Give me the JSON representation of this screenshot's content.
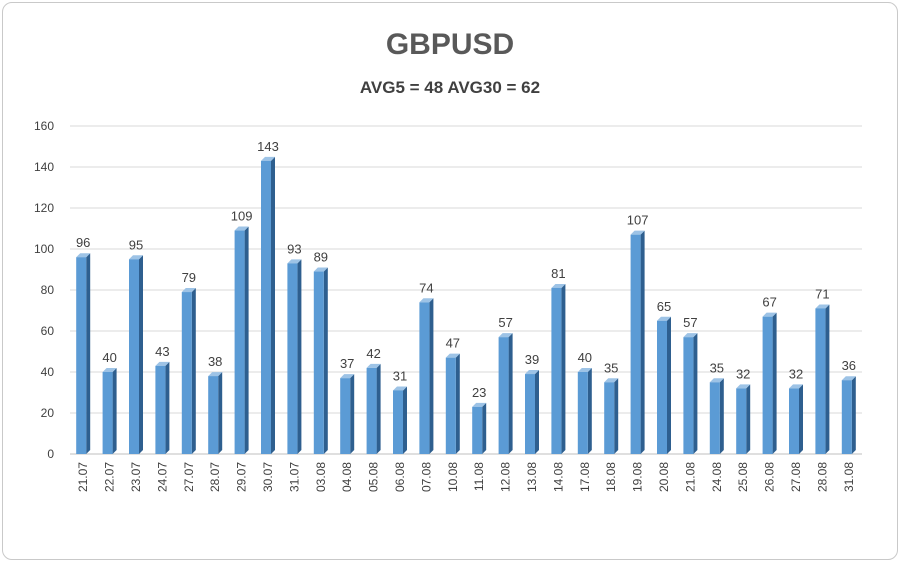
{
  "chart_data": {
    "type": "bar",
    "title": "GBPUSD",
    "subtitle": "AVG5 = 48 AVG30 = 62",
    "xlabel": "",
    "ylabel": "",
    "ylim": [
      0,
      160
    ],
    "yticks": [
      "0",
      "20",
      "40",
      "60",
      "80",
      "100",
      "120",
      "140",
      "160"
    ],
    "grid": true,
    "legend": "none",
    "categories": [
      "21.07",
      "22.07",
      "23.07",
      "24.07",
      "27.07",
      "28.07",
      "29.07",
      "30.07",
      "31.07",
      "03.08",
      "04.08",
      "05.08",
      "06.08",
      "07.08",
      "10.08",
      "11.08",
      "12.08",
      "13.08",
      "14.08",
      "17.08",
      "18.08",
      "19.08",
      "20.08",
      "21.08",
      "24.08",
      "25.08",
      "26.08",
      "27.08",
      "28.08",
      "31.08"
    ],
    "values": [
      96,
      40,
      95,
      43,
      79,
      38,
      109,
      143,
      93,
      89,
      37,
      42,
      31,
      74,
      47,
      23,
      57,
      39,
      81,
      40,
      35,
      107,
      65,
      57,
      35,
      32,
      67,
      32,
      71,
      36
    ],
    "colors": {
      "bar_front": "#5b9bd5",
      "bar_side": "#2e5f8f",
      "bar_top": "#9dc3e6",
      "grid": "#d9d9d9",
      "text": "#404040"
    }
  }
}
